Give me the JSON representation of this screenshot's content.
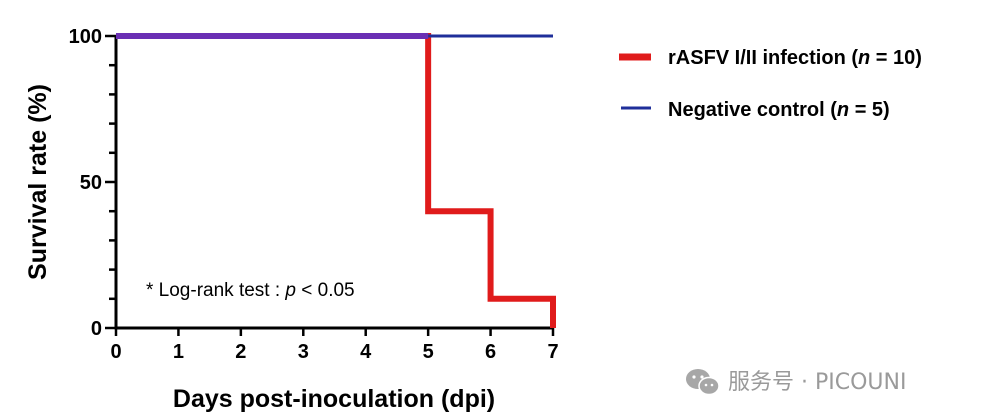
{
  "chart_data": {
    "type": "line",
    "step": true,
    "xlabel": "Days post-inoculation (dpi)",
    "ylabel": "Survival rate (%)",
    "xlim": [
      0,
      7
    ],
    "ylim": [
      0,
      100
    ],
    "x_ticks": [
      0,
      1,
      2,
      3,
      4,
      5,
      6,
      7
    ],
    "y_ticks": [
      0,
      50,
      100
    ],
    "y_minor_step": 10,
    "grid": false,
    "legend_position": "right",
    "series": [
      {
        "name_prefix": "rASFV I/II infection (",
        "name_italic": "n",
        "name_suffix": " = 10)",
        "color": "#e01b1b",
        "x": [
          0,
          5,
          5,
          6,
          6,
          7,
          7
        ],
        "y": [
          100,
          100,
          40,
          40,
          10,
          10,
          0
        ]
      },
      {
        "name_prefix": "Negative control (",
        "name_italic": "n",
        "name_suffix": " = 5)",
        "color": "#1f2f9a",
        "x": [
          0,
          7
        ],
        "y": [
          100,
          100
        ]
      }
    ],
    "overlap_color": "#6a2fb4",
    "annotation": {
      "prefix": "* Log-rank test : ",
      "italic": "p",
      "suffix": " < 0.05"
    }
  },
  "watermark": {
    "text": "服务号 · PICOUNI",
    "icon": "wechat-icon"
  }
}
